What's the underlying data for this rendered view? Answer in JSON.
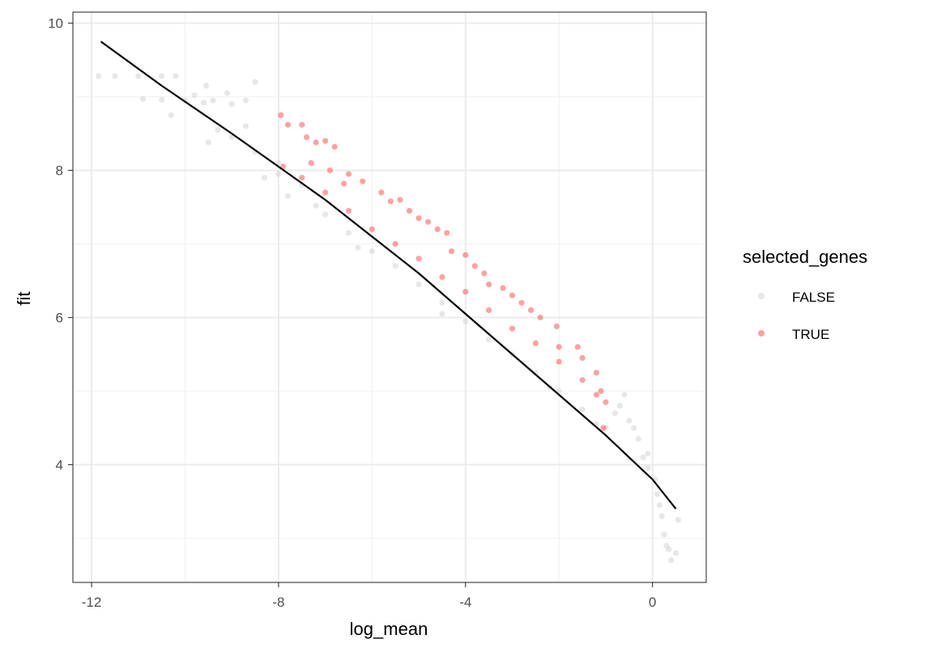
{
  "chart_data": {
    "type": "scatter",
    "xlabel": "log_mean",
    "ylabel": "fit",
    "xlim": [
      -12.4,
      1.15
    ],
    "ylim": [
      2.4,
      10.15
    ],
    "xticks": [
      -12,
      -8,
      -4,
      0
    ],
    "xtick_labels": [
      "-12",
      "-8",
      "-4",
      "0"
    ],
    "yticks": [
      4,
      6,
      8,
      10
    ],
    "ytick_labels": [
      "4",
      "6",
      "8",
      "10"
    ],
    "grid": true,
    "theme": "bw",
    "legend": {
      "title": "selected_genes",
      "placement": "right",
      "entries": [
        {
          "label": "FALSE",
          "color": "#d3d3d3"
        },
        {
          "label": "TRUE",
          "color": "#ff3030"
        }
      ]
    },
    "series": [
      {
        "name": "FALSE",
        "color": "#d3d3d3",
        "points": [
          [
            -11.85,
            9.28
          ],
          [
            -11.5,
            9.28
          ],
          [
            -11.0,
            9.28
          ],
          [
            -10.5,
            9.28
          ],
          [
            -10.2,
            9.28
          ],
          [
            -10.9,
            8.97
          ],
          [
            -10.5,
            8.96
          ],
          [
            -10.0,
            8.95
          ],
          [
            -9.6,
            8.92
          ],
          [
            -10.3,
            8.75
          ],
          [
            -9.8,
            9.02
          ],
          [
            -9.4,
            8.95
          ],
          [
            -9.0,
            8.9
          ],
          [
            -9.55,
            9.15
          ],
          [
            -9.1,
            9.05
          ],
          [
            -8.7,
            8.95
          ],
          [
            -8.5,
            9.2
          ],
          [
            -8.7,
            8.6
          ],
          [
            -9.3,
            8.55
          ],
          [
            -9.5,
            8.38
          ],
          [
            -9.0,
            8.45
          ],
          [
            -8.5,
            8.25
          ],
          [
            -8.0,
            8.1
          ],
          [
            -8.0,
            7.95
          ],
          [
            -7.5,
            7.8
          ],
          [
            -7.2,
            7.52
          ],
          [
            -7.0,
            7.4
          ],
          [
            -6.5,
            7.15
          ],
          [
            -6.0,
            6.9
          ],
          [
            -5.5,
            6.7
          ],
          [
            -5.0,
            6.45
          ],
          [
            -4.5,
            6.2
          ],
          [
            -4.0,
            5.95
          ],
          [
            -3.5,
            5.7
          ],
          [
            -3.0,
            5.5
          ],
          [
            -2.5,
            5.25
          ],
          [
            -2.0,
            5.0
          ],
          [
            -1.5,
            4.75
          ],
          [
            -1.0,
            4.5
          ],
          [
            -0.8,
            4.7
          ],
          [
            -0.6,
            4.95
          ],
          [
            -0.5,
            4.6
          ],
          [
            -0.3,
            4.35
          ],
          [
            -0.2,
            4.1
          ],
          [
            -0.1,
            3.95
          ],
          [
            0.05,
            3.8
          ],
          [
            0.1,
            3.6
          ],
          [
            0.2,
            3.3
          ],
          [
            0.25,
            3.05
          ],
          [
            0.3,
            2.9
          ],
          [
            0.35,
            2.85
          ],
          [
            0.4,
            2.7
          ],
          [
            0.5,
            2.8
          ],
          [
            0.55,
            3.25
          ],
          [
            0.15,
            3.45
          ],
          [
            -0.1,
            4.15
          ],
          [
            -0.4,
            4.5
          ],
          [
            -0.7,
            4.8
          ],
          [
            -1.2,
            4.55
          ],
          [
            -2.2,
            5.05
          ],
          [
            -4.5,
            6.05
          ],
          [
            -6.3,
            6.95
          ],
          [
            -7.8,
            7.65
          ],
          [
            -8.3,
            7.9
          ]
        ]
      },
      {
        "name": "TRUE",
        "color": "#ff3030",
        "points": [
          [
            -7.95,
            8.75
          ],
          [
            -7.8,
            8.62
          ],
          [
            -7.5,
            8.62
          ],
          [
            -7.4,
            8.45
          ],
          [
            -7.2,
            8.38
          ],
          [
            -7.0,
            8.4
          ],
          [
            -6.8,
            8.32
          ],
          [
            -7.3,
            8.1
          ],
          [
            -6.9,
            8.0
          ],
          [
            -6.5,
            7.95
          ],
          [
            -6.6,
            7.82
          ],
          [
            -6.2,
            7.85
          ],
          [
            -5.8,
            7.7
          ],
          [
            -5.6,
            7.58
          ],
          [
            -5.4,
            7.6
          ],
          [
            -5.2,
            7.45
          ],
          [
            -5.0,
            7.35
          ],
          [
            -4.8,
            7.3
          ],
          [
            -4.6,
            7.2
          ],
          [
            -4.4,
            7.15
          ],
          [
            -4.3,
            6.9
          ],
          [
            -4.0,
            6.85
          ],
          [
            -3.8,
            6.7
          ],
          [
            -3.6,
            6.6
          ],
          [
            -3.5,
            6.45
          ],
          [
            -3.2,
            6.4
          ],
          [
            -3.0,
            6.3
          ],
          [
            -2.8,
            6.2
          ],
          [
            -2.6,
            6.1
          ],
          [
            -2.4,
            6.0
          ],
          [
            -2.05,
            5.88
          ],
          [
            -2.0,
            5.6
          ],
          [
            -1.6,
            5.6
          ],
          [
            -1.5,
            5.45
          ],
          [
            -1.2,
            5.25
          ],
          [
            -1.1,
            5.0
          ],
          [
            -1.0,
            4.85
          ],
          [
            -1.05,
            4.5
          ],
          [
            -7.9,
            8.05
          ],
          [
            -7.5,
            7.9
          ],
          [
            -7.0,
            7.7
          ],
          [
            -6.5,
            7.45
          ],
          [
            -6.0,
            7.2
          ],
          [
            -5.5,
            7.0
          ],
          [
            -5.0,
            6.8
          ],
          [
            -4.5,
            6.55
          ],
          [
            -4.0,
            6.35
          ],
          [
            -3.5,
            6.1
          ],
          [
            -3.0,
            5.85
          ],
          [
            -2.5,
            5.65
          ],
          [
            -2.0,
            5.4
          ],
          [
            -1.5,
            5.15
          ],
          [
            -1.2,
            4.95
          ]
        ]
      },
      {
        "name": "fit line",
        "color": "#000000",
        "type": "line",
        "points": [
          [
            -11.8,
            9.75
          ],
          [
            -10.5,
            9.15
          ],
          [
            -9.0,
            8.5
          ],
          [
            -8.0,
            8.05
          ],
          [
            -7.0,
            7.6
          ],
          [
            -6.0,
            7.1
          ],
          [
            -5.0,
            6.6
          ],
          [
            -4.0,
            6.05
          ],
          [
            -3.0,
            5.5
          ],
          [
            -2.0,
            4.95
          ],
          [
            -1.0,
            4.4
          ],
          [
            -0.5,
            4.1
          ],
          [
            0.0,
            3.8
          ],
          [
            0.5,
            3.4
          ]
        ]
      }
    ]
  }
}
